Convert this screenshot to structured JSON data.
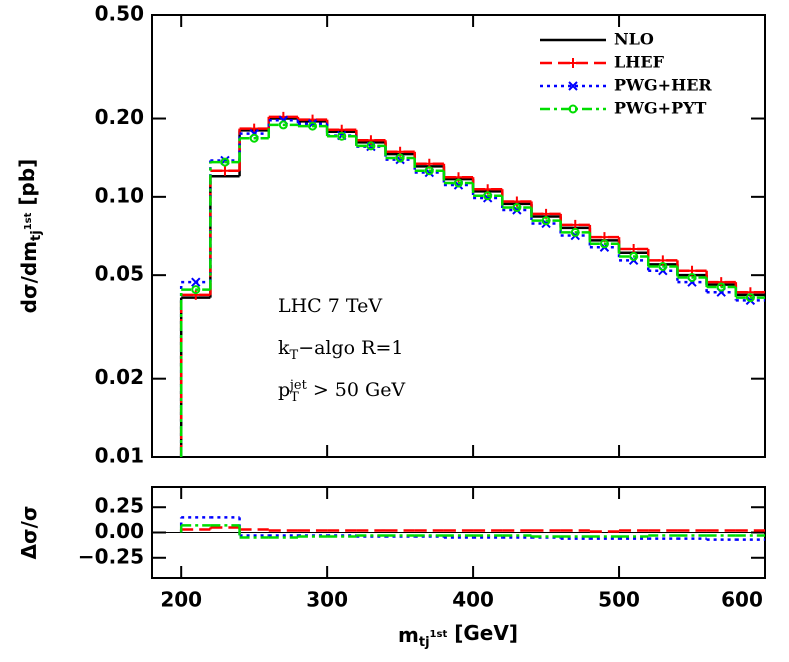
{
  "chart_data": [
    {
      "type": "histogram",
      "log_scale": true,
      "legend": "top-right",
      "y_label_parts": [
        {
          "text": "dσ/dm"
        },
        {
          "text": "tj",
          "shift": "sub"
        },
        {
          "text": "1st",
          "shift": "sub-sup"
        },
        {
          "text": " [pb]"
        }
      ],
      "annotations": [
        [
          {
            "text": "LHC 7 TeV"
          }
        ],
        [
          {
            "text": "k"
          },
          {
            "text": "T",
            "shift": "sub"
          },
          {
            "text": "−algo R=1"
          }
        ],
        [
          {
            "text": "p"
          },
          {
            "text": "T",
            "shift": "sub"
          },
          {
            "text": "jet",
            "shift": "sup-over"
          },
          {
            "text": " > 50 GeV"
          }
        ]
      ],
      "bins": [
        200,
        220,
        240,
        260,
        280,
        300,
        320,
        340,
        360,
        380,
        400,
        420,
        440,
        460,
        480,
        500,
        520,
        540,
        560,
        580,
        600
      ],
      "xlim": [
        180,
        600
      ],
      "xticks": [
        200,
        300,
        400,
        500,
        600
      ],
      "ylim": [
        0.01,
        0.5
      ],
      "yticks": [
        0.01,
        0.02,
        0.05,
        {
          "value": 0.1,
          "label": "0.10"
        },
        {
          "value": 0.2,
          "label": "0.20"
        },
        {
          "value": 0.5,
          "label": "0.50"
        }
      ],
      "series": [
        {
          "name": "NLO",
          "color": "#000000",
          "line_style": "solid",
          "marker": "none",
          "values": [
            0.041,
            0.12,
            0.18,
            0.2,
            0.195,
            0.178,
            0.162,
            0.146,
            0.131,
            0.117,
            0.105,
            0.094,
            0.084,
            0.076,
            0.068,
            0.061,
            0.055,
            0.05,
            0.046,
            0.042
          ]
        },
        {
          "name": "LHEF",
          "color": "#ff0000",
          "line_style": "dashed",
          "marker": "plus",
          "values": [
            0.042,
            0.126,
            0.183,
            0.203,
            0.198,
            0.181,
            0.165,
            0.149,
            0.134,
            0.119,
            0.107,
            0.096,
            0.086,
            0.078,
            0.07,
            0.063,
            0.057,
            0.052,
            0.047,
            0.043
          ]
        },
        {
          "name": "PWG+HER",
          "color": "#0000ff",
          "line_style": "dotted",
          "marker": "cross",
          "values": [
            0.047,
            0.138,
            0.175,
            0.197,
            0.191,
            0.172,
            0.156,
            0.139,
            0.124,
            0.111,
            0.099,
            0.089,
            0.079,
            0.071,
            0.064,
            0.057,
            0.052,
            0.047,
            0.043,
            0.04
          ]
        },
        {
          "name": "PWG+PYT",
          "color": "#00dd00",
          "line_style": "dashdot",
          "marker": "circle",
          "values": [
            0.044,
            0.136,
            0.168,
            0.189,
            0.187,
            0.171,
            0.157,
            0.141,
            0.126,
            0.113,
            0.101,
            0.091,
            0.081,
            0.073,
            0.066,
            0.059,
            0.054,
            0.049,
            0.045,
            0.041
          ]
        }
      ]
    },
    {
      "type": "histogram",
      "log_scale": false,
      "y_label_parts": [
        {
          "text": "Δσ/σ"
        }
      ],
      "x_label_parts": [
        {
          "text": "m"
        },
        {
          "text": "tj",
          "shift": "sub"
        },
        {
          "text": "1st",
          "shift": "sub-sup"
        },
        {
          "text": " [GeV]"
        }
      ],
      "bins": [
        200,
        220,
        240,
        260,
        280,
        300,
        320,
        340,
        360,
        380,
        400,
        420,
        440,
        460,
        480,
        500,
        520,
        540,
        560,
        580,
        600
      ],
      "xlim": [
        180,
        600
      ],
      "xticks": [
        200,
        300,
        400,
        500,
        600
      ],
      "ylim": [
        -0.45,
        0.45
      ],
      "yticks": [
        {
          "value": -0.25,
          "label": "−0.25"
        },
        {
          "value": 0,
          "label": "0.00"
        },
        {
          "value": 0.25,
          "label": "0.25"
        }
      ],
      "series": [
        {
          "color": "#ff0000",
          "line_style": "dashed",
          "values": [
            0.03,
            0.05,
            0.03,
            0.02,
            0.02,
            0.02,
            0.02,
            0.02,
            0.02,
            0.02,
            0.02,
            0.02,
            0.02,
            0.02,
            0.01,
            0.02,
            0.02,
            0.02,
            0.02,
            0.02
          ]
        },
        {
          "color": "#0000ff",
          "line_style": "dotted",
          "values": [
            0.15,
            0.15,
            -0.03,
            -0.03,
            -0.03,
            -0.03,
            -0.04,
            -0.04,
            -0.04,
            -0.05,
            -0.05,
            -0.05,
            -0.05,
            -0.06,
            -0.06,
            -0.06,
            -0.06,
            -0.06,
            -0.07,
            -0.07
          ]
        },
        {
          "color": "#00dd00",
          "line_style": "dashdot",
          "values": [
            0.07,
            0.07,
            -0.05,
            -0.05,
            -0.04,
            -0.04,
            -0.03,
            -0.03,
            -0.03,
            -0.03,
            -0.03,
            -0.03,
            -0.04,
            -0.04,
            -0.04,
            -0.04,
            -0.03,
            -0.03,
            -0.03,
            -0.03
          ]
        }
      ]
    }
  ]
}
